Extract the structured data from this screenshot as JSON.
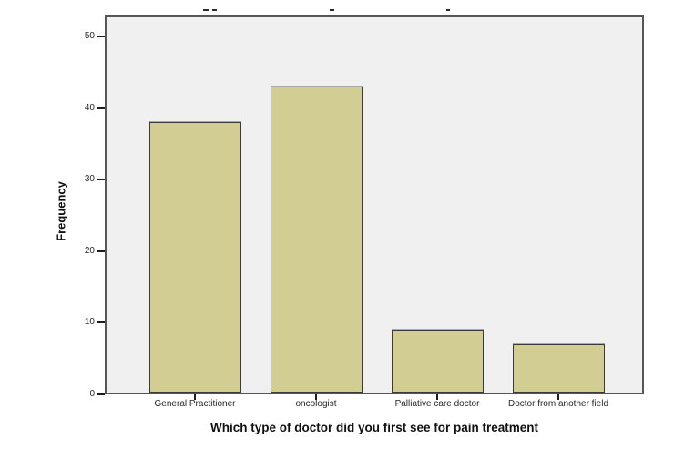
{
  "chart_data": {
    "type": "bar",
    "categories": [
      "General Practitioner",
      "oncologist",
      "Palliative care doctor",
      "Doctor from another field"
    ],
    "values": [
      38,
      43,
      9,
      7
    ],
    "xlabel": "Which type of doctor did you first see for pain treatment",
    "ylabel": "Frequency",
    "ylim": [
      0,
      52.9
    ],
    "yticks": [
      0,
      10,
      20,
      30,
      40,
      50
    ],
    "grid": false,
    "legend": false,
    "title_visible": "clipped at top edge (only letter tips visible)",
    "colors": {
      "bar_fill": "#d2cd92",
      "bar_border": "#3b3b3b",
      "plot_background": "#f0f0f0",
      "frame_border": "#565656",
      "text": "#262626",
      "page_background": "#ffffff"
    }
  }
}
